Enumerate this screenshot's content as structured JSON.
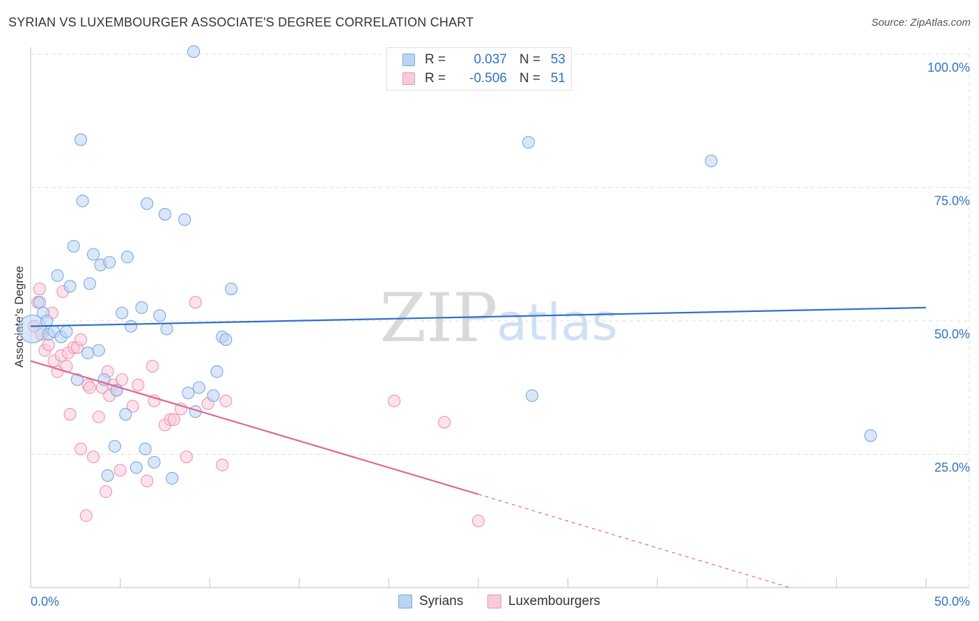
{
  "title": "SYRIAN VS LUXEMBOURGER ASSOCIATE'S DEGREE CORRELATION CHART",
  "source": "Source: ZipAtlas.com",
  "colors": {
    "syrians_fill": "#bcd4f3",
    "syrians_stroke": "#7aa7e0",
    "syrians_line": "#2e6fcb",
    "lux_fill": "#f9cbd9",
    "lux_stroke": "#ec93b0",
    "lux_line": "#e06594",
    "axis_text": "#3370c6",
    "grid": "#dddddd"
  },
  "legend_top": {
    "rows": [
      {
        "r_label": "R =",
        "r_value": "0.037",
        "n_label": "N =",
        "n_value": "53"
      },
      {
        "r_label": "R =",
        "r_value": "-0.506",
        "n_label": "N =",
        "n_value": "51"
      }
    ]
  },
  "legend_bottom": {
    "syrians": "Syrians",
    "luxembourgers": "Luxembourgers"
  },
  "watermark": {
    "zip": "ZIP",
    "atlas": "atlas"
  },
  "chart_data": {
    "type": "scatter",
    "title": "SYRIAN VS LUXEMBOURGER ASSOCIATE'S DEGREE CORRELATION CHART",
    "xlabel": "",
    "ylabel": "Associate's Degree",
    "xlim": [
      0,
      50
    ],
    "ylim": [
      0,
      100
    ],
    "x_tick_labels": {
      "left": "0.0%",
      "right": "50.0%"
    },
    "y_ticks": [
      {
        "value": 100,
        "label": "100.0%"
      },
      {
        "value": 75,
        "label": "75.0%"
      },
      {
        "value": 50,
        "label": "50.0%"
      },
      {
        "value": 25,
        "label": "25.0%"
      }
    ],
    "series": [
      {
        "name": "Syrians",
        "trend": {
          "x0": 0,
          "y0": 49.0,
          "x1": 50,
          "y1": 52.5
        },
        "points": [
          {
            "x": 0.1,
            "y": 48.5,
            "big": true
          },
          {
            "x": 0.5,
            "y": 53.5
          },
          {
            "x": 0.7,
            "y": 51.5
          },
          {
            "x": 0.9,
            "y": 50.0
          },
          {
            "x": 1.0,
            "y": 47.5
          },
          {
            "x": 1.3,
            "y": 48.0
          },
          {
            "x": 1.5,
            "y": 58.5
          },
          {
            "x": 1.7,
            "y": 47.0
          },
          {
            "x": 2.0,
            "y": 48.0
          },
          {
            "x": 2.2,
            "y": 56.5
          },
          {
            "x": 2.4,
            "y": 64.0
          },
          {
            "x": 2.6,
            "y": 39.0
          },
          {
            "x": 2.8,
            "y": 84.0
          },
          {
            "x": 2.9,
            "y": 72.5
          },
          {
            "x": 3.2,
            "y": 44.0
          },
          {
            "x": 3.3,
            "y": 57.0
          },
          {
            "x": 3.5,
            "y": 62.5
          },
          {
            "x": 3.8,
            "y": 44.5
          },
          {
            "x": 3.9,
            "y": 60.5
          },
          {
            "x": 4.1,
            "y": 39.0
          },
          {
            "x": 4.3,
            "y": 21.0
          },
          {
            "x": 4.4,
            "y": 61.0
          },
          {
            "x": 4.7,
            "y": 26.5
          },
          {
            "x": 4.8,
            "y": 37.0
          },
          {
            "x": 5.1,
            "y": 51.5
          },
          {
            "x": 5.3,
            "y": 32.5
          },
          {
            "x": 5.4,
            "y": 62.0
          },
          {
            "x": 5.6,
            "y": 49.0
          },
          {
            "x": 5.9,
            "y": 22.5
          },
          {
            "x": 6.2,
            "y": 52.5
          },
          {
            "x": 6.4,
            "y": 26.0
          },
          {
            "x": 6.5,
            "y": 72.0
          },
          {
            "x": 6.9,
            "y": 23.5
          },
          {
            "x": 7.2,
            "y": 51.0
          },
          {
            "x": 7.5,
            "y": 70.0
          },
          {
            "x": 7.6,
            "y": 48.5
          },
          {
            "x": 7.9,
            "y": 20.5
          },
          {
            "x": 8.6,
            "y": 69.0
          },
          {
            "x": 8.8,
            "y": 36.5
          },
          {
            "x": 9.1,
            "y": 100.5
          },
          {
            "x": 9.2,
            "y": 33.0
          },
          {
            "x": 9.4,
            "y": 37.5
          },
          {
            "x": 10.2,
            "y": 36.0
          },
          {
            "x": 10.4,
            "y": 40.5
          },
          {
            "x": 10.7,
            "y": 47.0
          },
          {
            "x": 10.9,
            "y": 46.5
          },
          {
            "x": 11.2,
            "y": 56.0
          },
          {
            "x": 27.8,
            "y": 83.5
          },
          {
            "x": 28.0,
            "y": 36.0
          },
          {
            "x": 38.0,
            "y": 80.0
          },
          {
            "x": 46.9,
            "y": 28.5
          }
        ]
      },
      {
        "name": "Luxembourgers",
        "trend": {
          "x0": 0,
          "y0": 42.5,
          "x1": 25,
          "y1": 17.5,
          "dash_to_x": 42.4,
          "dash_to_y": 0
        },
        "points": [
          {
            "x": 0.2,
            "y": 49.0
          },
          {
            "x": 0.4,
            "y": 53.5
          },
          {
            "x": 0.5,
            "y": 56.0
          },
          {
            "x": 0.6,
            "y": 47.5
          },
          {
            "x": 0.8,
            "y": 44.5
          },
          {
            "x": 1.0,
            "y": 45.5
          },
          {
            "x": 1.2,
            "y": 51.5
          },
          {
            "x": 1.3,
            "y": 42.5
          },
          {
            "x": 1.5,
            "y": 40.5
          },
          {
            "x": 1.7,
            "y": 43.5
          },
          {
            "x": 1.8,
            "y": 55.5
          },
          {
            "x": 2.0,
            "y": 41.5
          },
          {
            "x": 2.1,
            "y": 44.0
          },
          {
            "x": 2.2,
            "y": 32.5
          },
          {
            "x": 2.4,
            "y": 45.0
          },
          {
            "x": 2.6,
            "y": 45.0
          },
          {
            "x": 2.8,
            "y": 46.5
          },
          {
            "x": 2.8,
            "y": 26.0
          },
          {
            "x": 3.1,
            "y": 13.5
          },
          {
            "x": 3.2,
            "y": 38.0
          },
          {
            "x": 3.3,
            "y": 37.5
          },
          {
            "x": 3.5,
            "y": 24.5
          },
          {
            "x": 3.8,
            "y": 32.0
          },
          {
            "x": 4.0,
            "y": 37.5
          },
          {
            "x": 4.2,
            "y": 18.0
          },
          {
            "x": 4.3,
            "y": 40.5
          },
          {
            "x": 4.4,
            "y": 36.0
          },
          {
            "x": 4.6,
            "y": 38.0
          },
          {
            "x": 4.8,
            "y": 37.0
          },
          {
            "x": 5.0,
            "y": 22.0
          },
          {
            "x": 5.1,
            "y": 39.0
          },
          {
            "x": 5.7,
            "y": 34.0
          },
          {
            "x": 6.0,
            "y": 38.0
          },
          {
            "x": 6.5,
            "y": 20.0
          },
          {
            "x": 6.8,
            "y": 41.5
          },
          {
            "x": 6.9,
            "y": 35.0
          },
          {
            "x": 7.5,
            "y": 30.5
          },
          {
            "x": 7.8,
            "y": 31.5
          },
          {
            "x": 8.0,
            "y": 31.5
          },
          {
            "x": 8.4,
            "y": 33.5
          },
          {
            "x": 8.7,
            "y": 24.5
          },
          {
            "x": 9.2,
            "y": 53.5
          },
          {
            "x": 9.9,
            "y": 34.5
          },
          {
            "x": 10.7,
            "y": 23.0
          },
          {
            "x": 10.9,
            "y": 35.0
          },
          {
            "x": 20.3,
            "y": 35.0
          },
          {
            "x": 23.1,
            "y": 31.0
          },
          {
            "x": 25.0,
            "y": 12.5
          }
        ]
      }
    ]
  }
}
